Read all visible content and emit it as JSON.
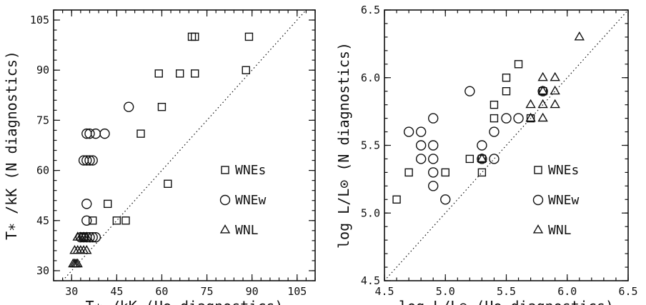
{
  "chart_data": [
    {
      "type": "scatter",
      "xlabel": "T∗ /kK (He diagnostics)",
      "ylabel": "T∗ /kK (N diagnostics)",
      "xlim": [
        24,
        111
      ],
      "ylim": [
        27,
        108
      ],
      "xticks": [
        30,
        45,
        60,
        75,
        90,
        105
      ],
      "yticks": [
        30,
        45,
        60,
        75,
        90,
        105
      ],
      "one_to_one_line": true,
      "legend_position": "lower-right",
      "series": [
        {
          "name": "WNEs",
          "marker": "square",
          "points": [
            [
              89,
              100
            ],
            [
              70,
              100
            ],
            [
              71,
              100
            ],
            [
              59,
              89
            ],
            [
              66,
              89
            ],
            [
              71,
              89
            ],
            [
              88,
              90
            ],
            [
              60,
              79
            ],
            [
              53,
              71
            ],
            [
              62,
              56
            ],
            [
              42,
              50
            ],
            [
              37,
              45
            ],
            [
              45,
              45
            ],
            [
              48,
              45
            ],
            [
              34,
              40
            ]
          ]
        },
        {
          "name": "WNEw",
          "marker": "circle",
          "points": [
            [
              49,
              79
            ],
            [
              35,
              71
            ],
            [
              36,
              71
            ],
            [
              38,
              71
            ],
            [
              41,
              71
            ],
            [
              34,
              63
            ],
            [
              35,
              63
            ],
            [
              36,
              63
            ],
            [
              37,
              63
            ],
            [
              35,
              50
            ],
            [
              35,
              45
            ],
            [
              33,
              40
            ],
            [
              34,
              40
            ],
            [
              35,
              40
            ],
            [
              36,
              40
            ],
            [
              37,
              40
            ],
            [
              38,
              40
            ]
          ]
        },
        {
          "name": "WNL",
          "marker": "triangle",
          "points": [
            [
              32,
              40
            ],
            [
              33,
              40
            ],
            [
              34,
              40
            ],
            [
              35,
              40
            ],
            [
              31,
              36
            ],
            [
              32,
              36
            ],
            [
              33,
              36
            ],
            [
              34,
              36
            ],
            [
              35,
              36
            ],
            [
              30.5,
              32
            ],
            [
              31,
              32
            ],
            [
              31.5,
              32
            ],
            [
              32,
              32
            ]
          ]
        }
      ]
    },
    {
      "type": "scatter",
      "xlabel": "log L/L⊙ (He diagnostics)",
      "ylabel": "log L/L⊙ (N diagnostics)",
      "xlim": [
        4.5,
        6.5
      ],
      "ylim": [
        4.5,
        6.5
      ],
      "xticks": [
        4.5,
        5.0,
        5.5,
        6.0,
        6.5
      ],
      "yticks": [
        4.5,
        5.0,
        5.5,
        6.0,
        6.5
      ],
      "one_to_one_line": true,
      "legend_position": "lower-right",
      "series": [
        {
          "name": "WNEs",
          "marker": "square",
          "points": [
            [
              4.6,
              5.1
            ],
            [
              4.7,
              5.3
            ],
            [
              5.0,
              5.3
            ],
            [
              5.2,
              5.4
            ],
            [
              5.3,
              5.3
            ],
            [
              5.3,
              5.4
            ],
            [
              5.4,
              5.7
            ],
            [
              5.4,
              5.8
            ],
            [
              5.5,
              5.9
            ],
            [
              5.5,
              6.0
            ],
            [
              5.6,
              6.1
            ],
            [
              5.7,
              5.7
            ],
            [
              5.8,
              5.9
            ]
          ]
        },
        {
          "name": "WNEw",
          "marker": "circle",
          "points": [
            [
              4.7,
              5.6
            ],
            [
              4.8,
              5.6
            ],
            [
              4.8,
              5.5
            ],
            [
              4.8,
              5.4
            ],
            [
              4.9,
              5.7
            ],
            [
              4.9,
              5.5
            ],
            [
              4.9,
              5.4
            ],
            [
              4.9,
              5.3
            ],
            [
              4.9,
              5.2
            ],
            [
              5.0,
              5.1
            ],
            [
              5.2,
              5.9
            ],
            [
              5.3,
              5.5
            ],
            [
              5.3,
              5.4
            ],
            [
              5.4,
              5.4
            ],
            [
              5.4,
              5.6
            ],
            [
              5.5,
              5.7
            ],
            [
              5.6,
              5.7
            ],
            [
              5.8,
              5.9
            ]
          ]
        },
        {
          "name": "WNL",
          "marker": "triangle",
          "points": [
            [
              5.3,
              5.4
            ],
            [
              5.7,
              5.7
            ],
            [
              5.7,
              5.8
            ],
            [
              5.8,
              5.7
            ],
            [
              5.8,
              5.8
            ],
            [
              5.8,
              5.9
            ],
            [
              5.8,
              6.0
            ],
            [
              5.9,
              5.8
            ],
            [
              5.9,
              5.9
            ],
            [
              5.9,
              6.0
            ],
            [
              6.1,
              6.3
            ]
          ]
        }
      ]
    }
  ]
}
